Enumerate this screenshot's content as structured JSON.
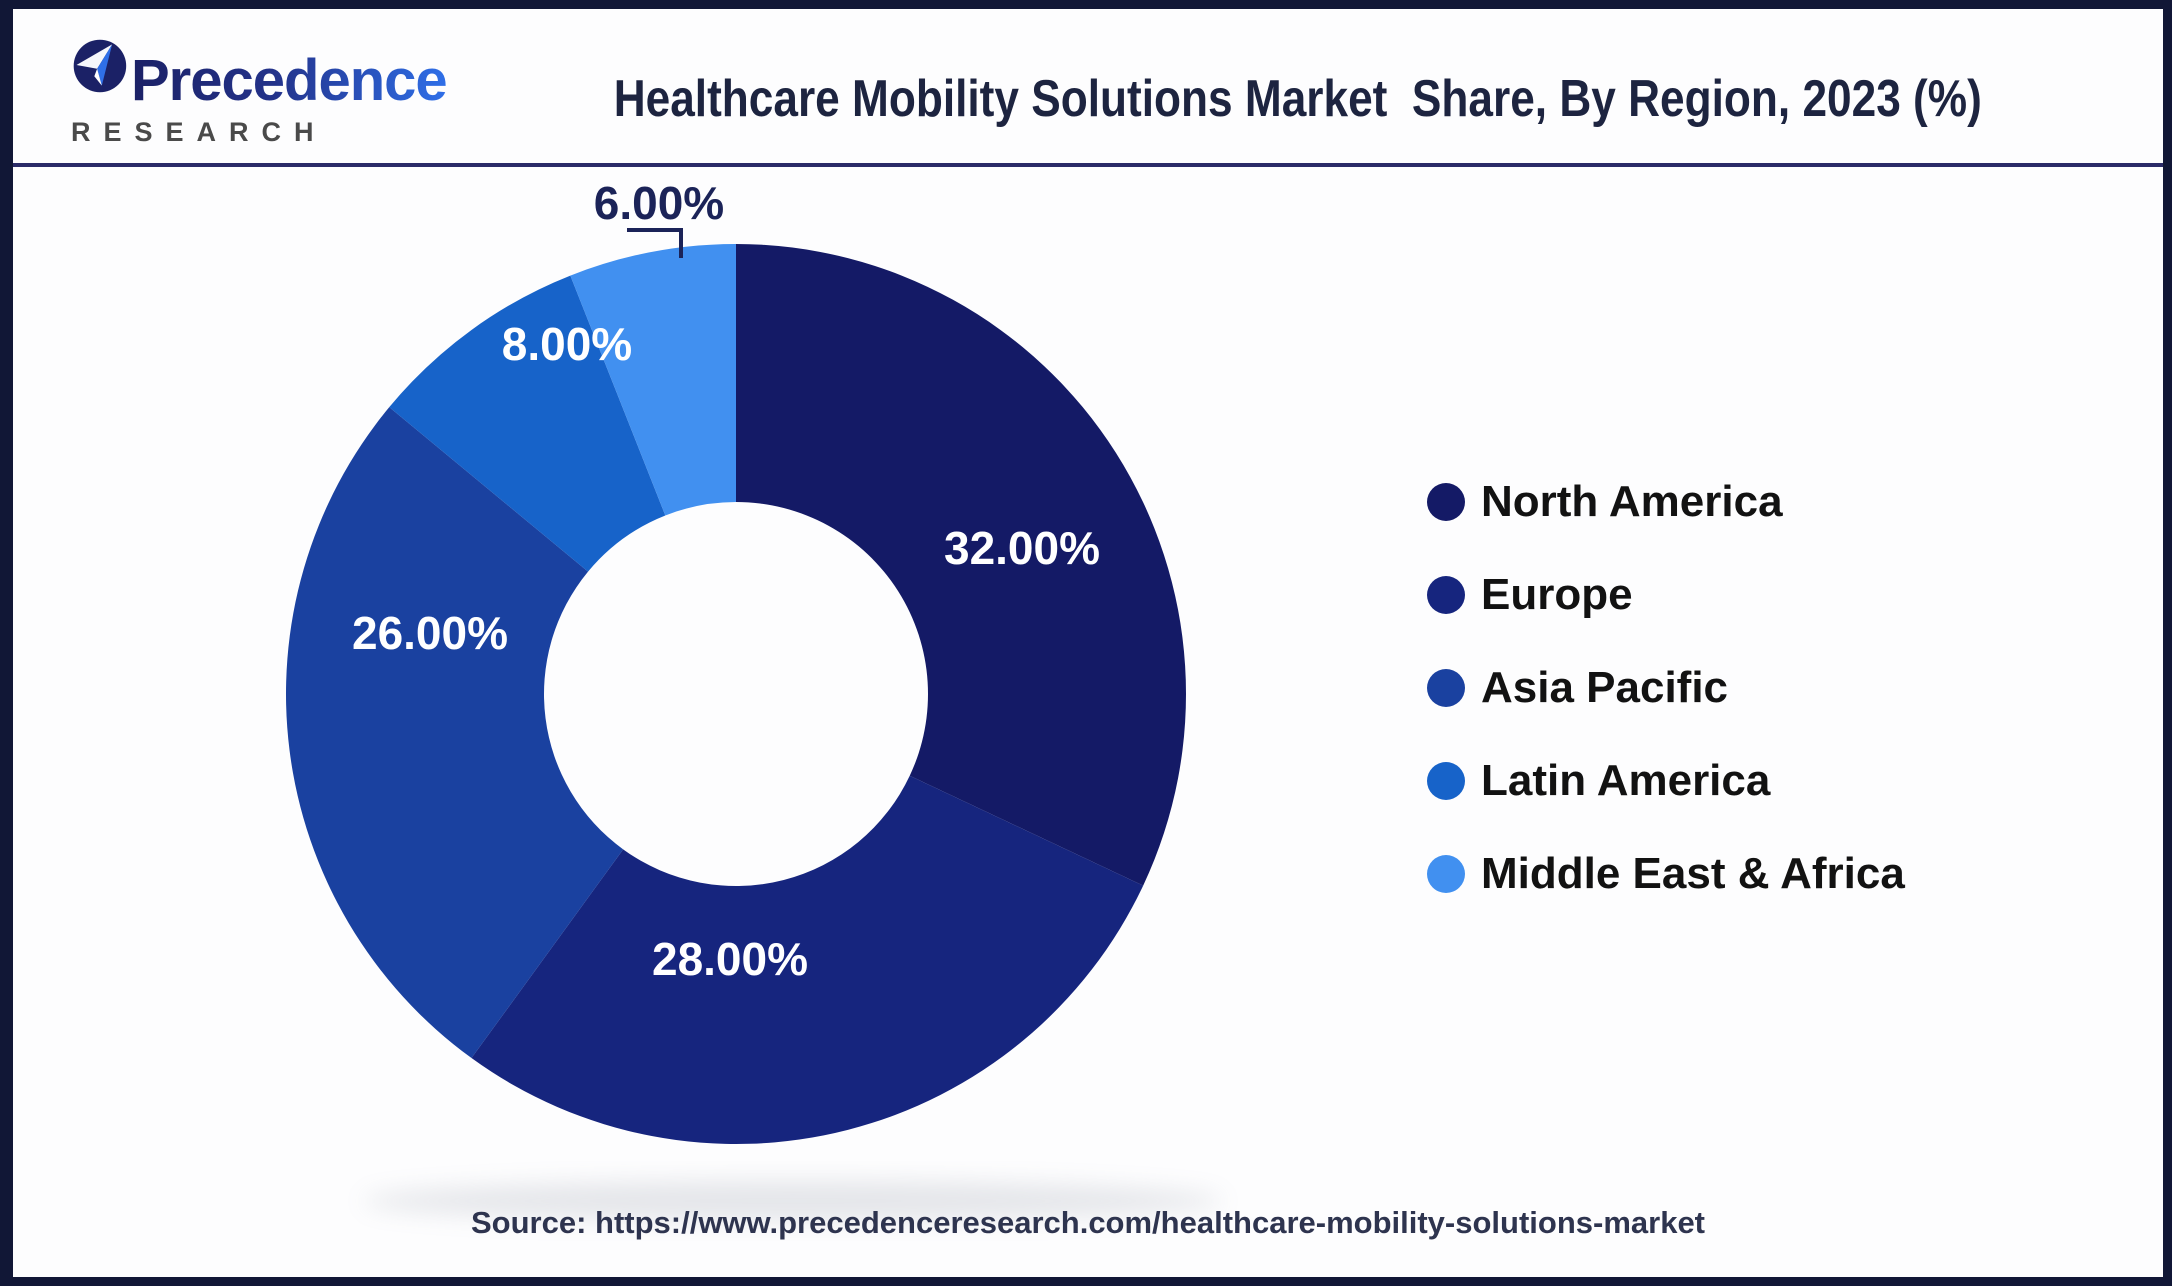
{
  "header": {
    "logo": {
      "brand": "Precedence",
      "sub": "RESEARCH"
    },
    "title": "Healthcare Mobility Solutions Market  Share, By Region, 2023 (%)"
  },
  "chart_data": {
    "type": "pie",
    "subtype": "donut",
    "title": "Healthcare Mobility Solutions Market Share, By Region, 2023 (%)",
    "categories": [
      "North America",
      "Europe",
      "Asia Pacific",
      "Latin America",
      "Middle East & Africa"
    ],
    "values": [
      32,
      28,
      26,
      8,
      6
    ],
    "value_labels": [
      "32.00%",
      "28.00%",
      "26.00%",
      "8.00%",
      "6.00%"
    ],
    "colors": [
      "#141a66",
      "#16257e",
      "#1a41a0",
      "#1763c9",
      "#4190f0"
    ],
    "start_angle_deg": 0,
    "direction": "clockwise",
    "legend_position": "right",
    "grid": false
  },
  "source": {
    "text": "Source: https://www.precedenceresearch.com/healthcare-mobility-solutions-market"
  }
}
